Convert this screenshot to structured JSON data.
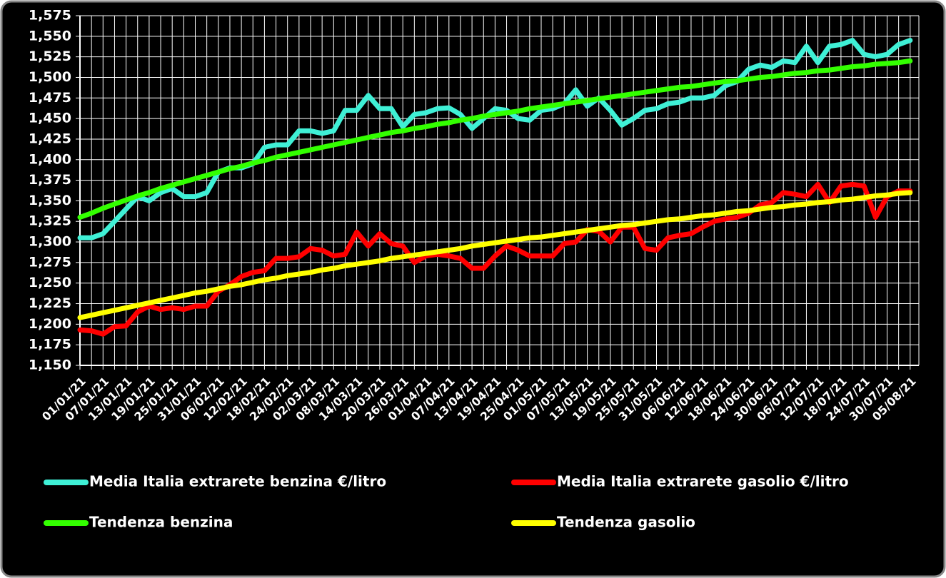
{
  "chart_data": {
    "type": "line",
    "categories": [
      "01/01/21",
      null,
      "07/01/21",
      null,
      "13/01/21",
      null,
      "19/01/21",
      null,
      "25/01/21",
      null,
      "31/01/21",
      null,
      "06/02/21",
      null,
      "12/02/21",
      null,
      "18/02/21",
      null,
      "24/02/21",
      null,
      "02/03/21",
      null,
      "08/03/21",
      null,
      "14/03/21",
      null,
      "20/03/21",
      null,
      "26/03/21",
      null,
      "01/04/21",
      null,
      "07/04/21",
      null,
      "13/04/21",
      null,
      "19/04/21",
      null,
      "25/04/21",
      null,
      "01/05/21",
      null,
      "07/05/21",
      null,
      "13/05/21",
      null,
      "19/05/21",
      null,
      "25/05/21",
      null,
      "31/05/21",
      null,
      "06/06/21",
      null,
      "12/06/21",
      null,
      "18/06/21",
      null,
      "24/06/21",
      null,
      "30/06/21",
      null,
      "06/07/21",
      null,
      "12/07/21",
      null,
      "18/07/21",
      null,
      "24/07/21",
      null,
      "30/07/21",
      null,
      "05/08/21"
    ],
    "series": [
      {
        "name": "Media Italia extrarete benzina €/litro",
        "color": "#3ff0d6",
        "values": [
          1.305,
          1.305,
          1.31,
          1.325,
          1.34,
          1.355,
          1.35,
          1.36,
          1.365,
          1.355,
          1.355,
          1.36,
          1.385,
          1.39,
          1.39,
          1.395,
          1.415,
          1.418,
          1.418,
          1.435,
          1.435,
          1.432,
          1.435,
          1.46,
          1.46,
          1.478,
          1.462,
          1.462,
          1.44,
          1.455,
          1.457,
          1.462,
          1.463,
          1.455,
          1.438,
          1.45,
          1.462,
          1.46,
          1.45,
          1.448,
          1.46,
          1.462,
          1.468,
          1.485,
          1.465,
          1.475,
          1.46,
          1.442,
          1.45,
          1.46,
          1.462,
          1.468,
          1.47,
          1.475,
          1.475,
          1.478,
          1.49,
          1.495,
          1.51,
          1.515,
          1.512,
          1.52,
          1.518,
          1.538,
          1.518,
          1.538,
          1.54,
          1.545,
          1.528,
          1.525,
          1.528,
          1.54,
          1.545
        ]
      },
      {
        "name": "Media Italia extrarete gasolio €/litro",
        "color": "#ff0000",
        "values": [
          1.193,
          1.192,
          1.188,
          1.197,
          1.198,
          1.215,
          1.222,
          1.218,
          1.22,
          1.218,
          1.222,
          1.222,
          1.24,
          1.248,
          1.258,
          1.263,
          1.265,
          1.28,
          1.28,
          1.282,
          1.292,
          1.29,
          1.283,
          1.285,
          1.312,
          1.295,
          1.31,
          1.298,
          1.295,
          1.275,
          1.283,
          1.285,
          1.283,
          1.28,
          1.268,
          1.268,
          1.283,
          1.295,
          1.29,
          1.283,
          1.283,
          1.283,
          1.298,
          1.3,
          1.315,
          1.313,
          1.3,
          1.318,
          1.318,
          1.292,
          1.29,
          1.305,
          1.308,
          1.31,
          1.318,
          1.325,
          1.328,
          1.33,
          1.335,
          1.345,
          1.348,
          1.36,
          1.358,
          1.355,
          1.37,
          1.348,
          1.368,
          1.37,
          1.368,
          1.33,
          1.355,
          1.362,
          1.362
        ]
      },
      {
        "name": "Tendenza benzina",
        "color": "#33ff00",
        "values": [
          1.33,
          1.335,
          1.341,
          1.346,
          1.351,
          1.356,
          1.36,
          1.365,
          1.369,
          1.373,
          1.377,
          1.381,
          1.385,
          1.389,
          1.392,
          1.396,
          1.399,
          1.403,
          1.406,
          1.409,
          1.412,
          1.415,
          1.418,
          1.421,
          1.424,
          1.427,
          1.43,
          1.433,
          1.435,
          1.438,
          1.44,
          1.443,
          1.445,
          1.448,
          1.45,
          1.453,
          1.455,
          1.457,
          1.459,
          1.462,
          1.464,
          1.466,
          1.468,
          1.47,
          1.472,
          1.474,
          1.476,
          1.478,
          1.48,
          1.482,
          1.484,
          1.486,
          1.488,
          1.489,
          1.491,
          1.493,
          1.495,
          1.496,
          1.498,
          1.5,
          1.501,
          1.503,
          1.505,
          1.506,
          1.508,
          1.509,
          1.511,
          1.513,
          1.514,
          1.516,
          1.517,
          1.518,
          1.52
        ]
      },
      {
        "name": "Tendenza gasolio",
        "color": "#ffff00",
        "values": [
          1.208,
          1.211,
          1.214,
          1.217,
          1.22,
          1.223,
          1.226,
          1.229,
          1.232,
          1.235,
          1.238,
          1.24,
          1.243,
          1.246,
          1.248,
          1.251,
          1.254,
          1.256,
          1.259,
          1.261,
          1.263,
          1.266,
          1.268,
          1.271,
          1.273,
          1.275,
          1.277,
          1.28,
          1.282,
          1.284,
          1.286,
          1.288,
          1.29,
          1.292,
          1.295,
          1.297,
          1.299,
          1.301,
          1.303,
          1.305,
          1.306,
          1.308,
          1.31,
          1.312,
          1.314,
          1.316,
          1.318,
          1.32,
          1.321,
          1.323,
          1.325,
          1.327,
          1.328,
          1.33,
          1.332,
          1.333,
          1.335,
          1.337,
          1.338,
          1.34,
          1.342,
          1.343,
          1.345,
          1.346,
          1.348,
          1.349,
          1.351,
          1.352,
          1.354,
          1.356,
          1.357,
          1.359,
          1.36
        ]
      }
    ],
    "ylim": [
      1.15,
      1.575
    ],
    "yticks": [
      {
        "value": 1.15,
        "label": "1,150"
      },
      {
        "value": 1.175,
        "label": "1,175"
      },
      {
        "value": 1.2,
        "label": "1,200"
      },
      {
        "value": 1.225,
        "label": "1,225"
      },
      {
        "value": 1.25,
        "label": "1,250"
      },
      {
        "value": 1.275,
        "label": "1,275"
      },
      {
        "value": 1.3,
        "label": "1,300"
      },
      {
        "value": 1.325,
        "label": "1,325"
      },
      {
        "value": 1.35,
        "label": "1,350"
      },
      {
        "value": 1.375,
        "label": "1,375"
      },
      {
        "value": 1.4,
        "label": "1,400"
      },
      {
        "value": 1.425,
        "label": "1,425"
      },
      {
        "value": 1.45,
        "label": "1,450"
      },
      {
        "value": 1.475,
        "label": "1,475"
      },
      {
        "value": 1.5,
        "label": "1,500"
      },
      {
        "value": 1.525,
        "label": "1,525"
      },
      {
        "value": 1.55,
        "label": "1,550"
      },
      {
        "value": 1.575,
        "label": "1,575"
      }
    ],
    "grid": true
  }
}
